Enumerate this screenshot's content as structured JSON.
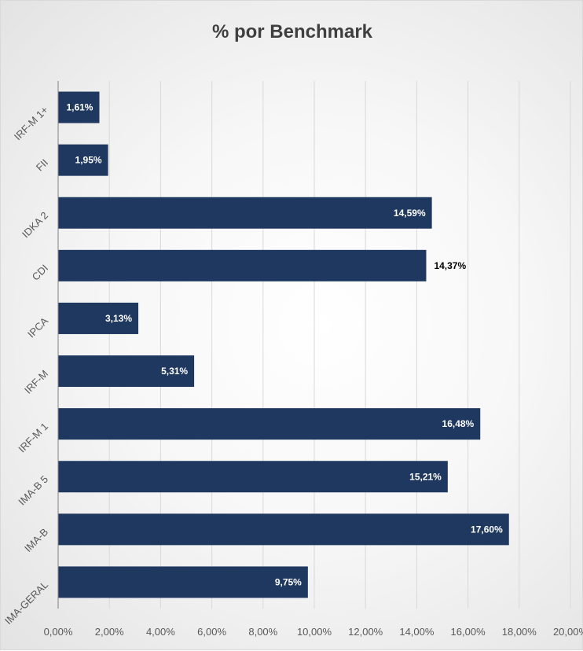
{
  "chart_data": {
    "type": "bar",
    "orientation": "horizontal",
    "title": "% por Benchmark",
    "xlabel": "",
    "ylabel": "",
    "categories": [
      "IRF-M 1+",
      "FII",
      "IDKA 2",
      "CDI",
      "IPCA",
      "IRF-M",
      "IRF-M 1",
      "IMA-B 5",
      "IMA-B",
      "IMA-GERAL"
    ],
    "values": [
      1.61,
      1.95,
      14.59,
      14.37,
      3.13,
      5.31,
      16.48,
      15.21,
      17.6,
      9.75
    ],
    "value_labels": [
      "1,61%",
      "1,95%",
      "14,59%",
      "14,37%",
      "3,13%",
      "5,31%",
      "16,48%",
      "15,21%",
      "17,60%",
      "9,75%"
    ],
    "xlim": [
      0,
      20
    ],
    "x_ticks": [
      "0,00%",
      "2,00%",
      "4,00%",
      "6,00%",
      "8,00%",
      "10,00%",
      "12,00%",
      "14,00%",
      "16,00%",
      "18,00%",
      "20,00%"
    ],
    "grid": true,
    "legend": "none",
    "colors": {
      "bar": "#1f3860",
      "grid": "#d9d9d9",
      "label_inside": "#ffffff",
      "label_outside": "#000000",
      "tick_text": "#595959"
    }
  }
}
